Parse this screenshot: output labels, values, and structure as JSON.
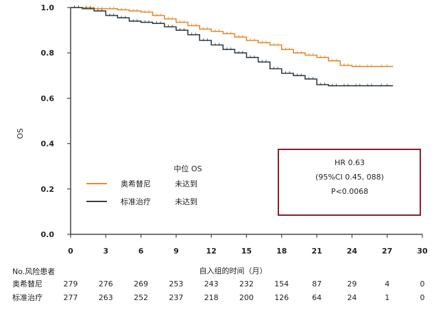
{
  "chart_data": {
    "type": "line",
    "subtype": "kaplan-meier",
    "title": "",
    "ylabel": "OS",
    "xlabel": "自入组的时间（月）",
    "xlim": [
      0,
      30
    ],
    "ylim": [
      0.0,
      1.0
    ],
    "x_ticks": [
      0,
      3,
      6,
      9,
      12,
      15,
      18,
      21,
      24,
      27,
      30
    ],
    "x_tick_labels": [
      "0",
      "3",
      "6",
      "9",
      "12",
      "15",
      "18",
      "21",
      "24",
      "27",
      "30"
    ],
    "y_ticks": [
      0.0,
      0.2,
      0.4,
      0.6,
      0.8,
      1.0
    ],
    "y_tick_labels": [
      "0.0",
      "0.2",
      "0.4",
      "0.6",
      "0.8",
      "1.0"
    ],
    "grid": false,
    "legend": {
      "header": "中位 OS",
      "placement": "center-left",
      "entries": [
        {
          "name": "奥希替尼",
          "median": "未达到",
          "color": "#e8892a"
        },
        {
          "name": "标准治疗",
          "median": "未达到",
          "color": "#2f3d45"
        }
      ]
    },
    "annotation": {
      "lines": [
        "HR 0.63",
        "(95%CI 0.45, 088)",
        "P<0.0068"
      ],
      "border_color": "#8b1a2b"
    },
    "series": [
      {
        "name": "奥希替尼",
        "color": "#e8892a",
        "x": [
          0,
          1,
          2,
          3,
          4,
          5,
          6,
          7,
          8,
          9,
          10,
          11,
          12,
          13,
          14,
          15,
          16,
          17,
          18,
          19,
          20,
          21,
          22,
          23,
          24,
          25,
          26,
          27.5
        ],
        "y": [
          1.0,
          1.0,
          0.995,
          0.995,
          0.99,
          0.985,
          0.98,
          0.965,
          0.95,
          0.935,
          0.92,
          0.905,
          0.895,
          0.885,
          0.87,
          0.855,
          0.845,
          0.835,
          0.815,
          0.8,
          0.79,
          0.78,
          0.765,
          0.745,
          0.74,
          0.74,
          0.74,
          0.74
        ]
      },
      {
        "name": "标准治疗",
        "color": "#2f3d45",
        "x": [
          0,
          1,
          2,
          3,
          4,
          5,
          6,
          7,
          8,
          9,
          10,
          11,
          12,
          13,
          14,
          15,
          16,
          17,
          18,
          19,
          20,
          21,
          22,
          23,
          24,
          25,
          26,
          27.5
        ],
        "y": [
          1.0,
          0.995,
          0.985,
          0.965,
          0.955,
          0.94,
          0.935,
          0.93,
          0.915,
          0.9,
          0.88,
          0.855,
          0.835,
          0.815,
          0.8,
          0.78,
          0.76,
          0.73,
          0.71,
          0.7,
          0.685,
          0.66,
          0.655,
          0.655,
          0.655,
          0.655,
          0.655,
          0.655
        ]
      }
    ],
    "risk_table": {
      "header": "No.风险患者",
      "rows": [
        {
          "name": "奥希替尼",
          "values": [
            "279",
            "276",
            "269",
            "253",
            "243",
            "232",
            "154",
            "87",
            "29",
            "4",
            "0"
          ]
        },
        {
          "name": "标准治疗",
          "values": [
            "277",
            "263",
            "252",
            "237",
            "218",
            "200",
            "126",
            "64",
            "24",
            "1",
            "0"
          ]
        }
      ]
    }
  }
}
